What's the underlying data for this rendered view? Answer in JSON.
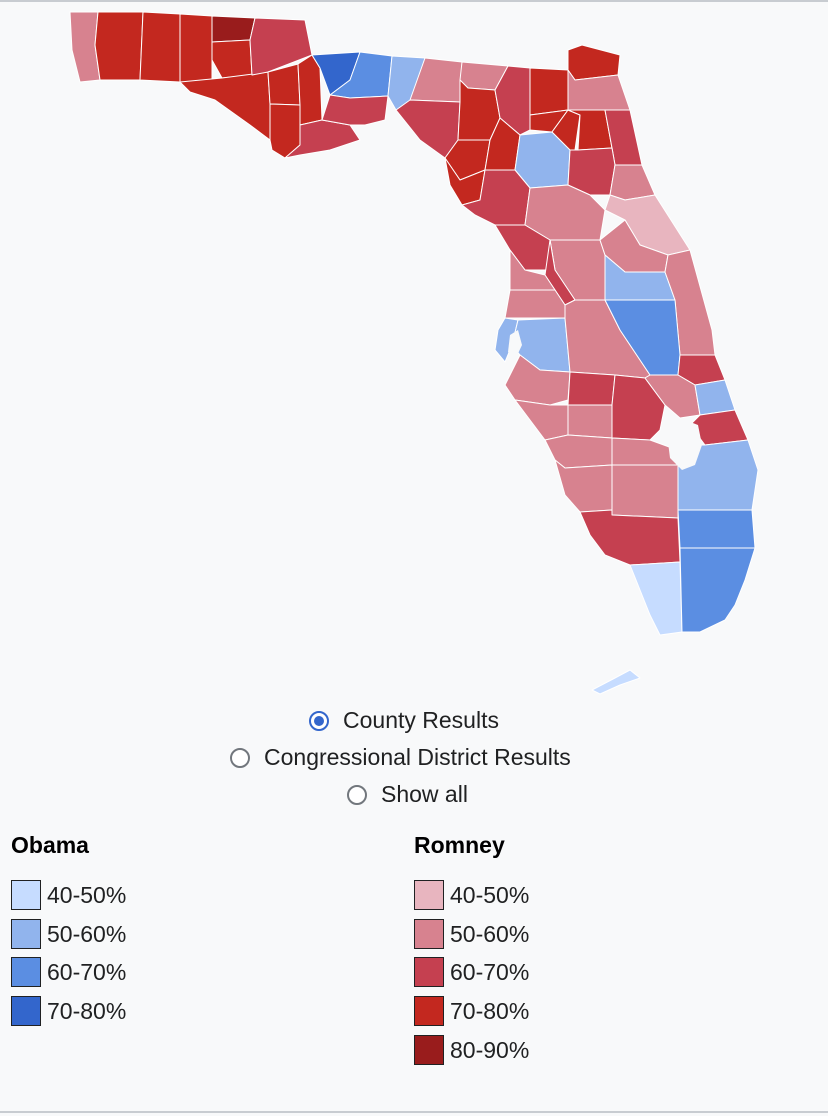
{
  "map": {
    "colors": {
      "obama_40_50": "#c6dcff",
      "obama_50_60": "#91b4ed",
      "obama_60_70": "#5b8ee2",
      "obama_70_80": "#3366cc",
      "romney_40_50": "#e8b5bf",
      "romney_50_60": "#d7828f",
      "romney_60_70": "#c54050",
      "romney_70_80": "#c3281f",
      "romney_80_90": "#991c1c",
      "water": "#f8f9fa",
      "border": "#ffffff"
    }
  },
  "view_options": [
    {
      "label": "County Results",
      "checked": true
    },
    {
      "label": "Congressional District Results",
      "checked": false
    },
    {
      "label": "Show all",
      "checked": false
    }
  ],
  "legend": {
    "obama": {
      "title": "Obama",
      "items": [
        {
          "label": "40-50%",
          "color": "#c6dcff"
        },
        {
          "label": "50-60%",
          "color": "#91b4ed"
        },
        {
          "label": "60-70%",
          "color": "#5b8ee2"
        },
        {
          "label": "70-80%",
          "color": "#3366cc"
        }
      ]
    },
    "romney": {
      "title": "Romney",
      "items": [
        {
          "label": "40-50%",
          "color": "#e8b5bf"
        },
        {
          "label": "50-60%",
          "color": "#d7828f"
        },
        {
          "label": "60-70%",
          "color": "#c54050"
        },
        {
          "label": "70-80%",
          "color": "#c3281f"
        },
        {
          "label": "80-90%",
          "color": "#991c1c"
        }
      ]
    }
  }
}
